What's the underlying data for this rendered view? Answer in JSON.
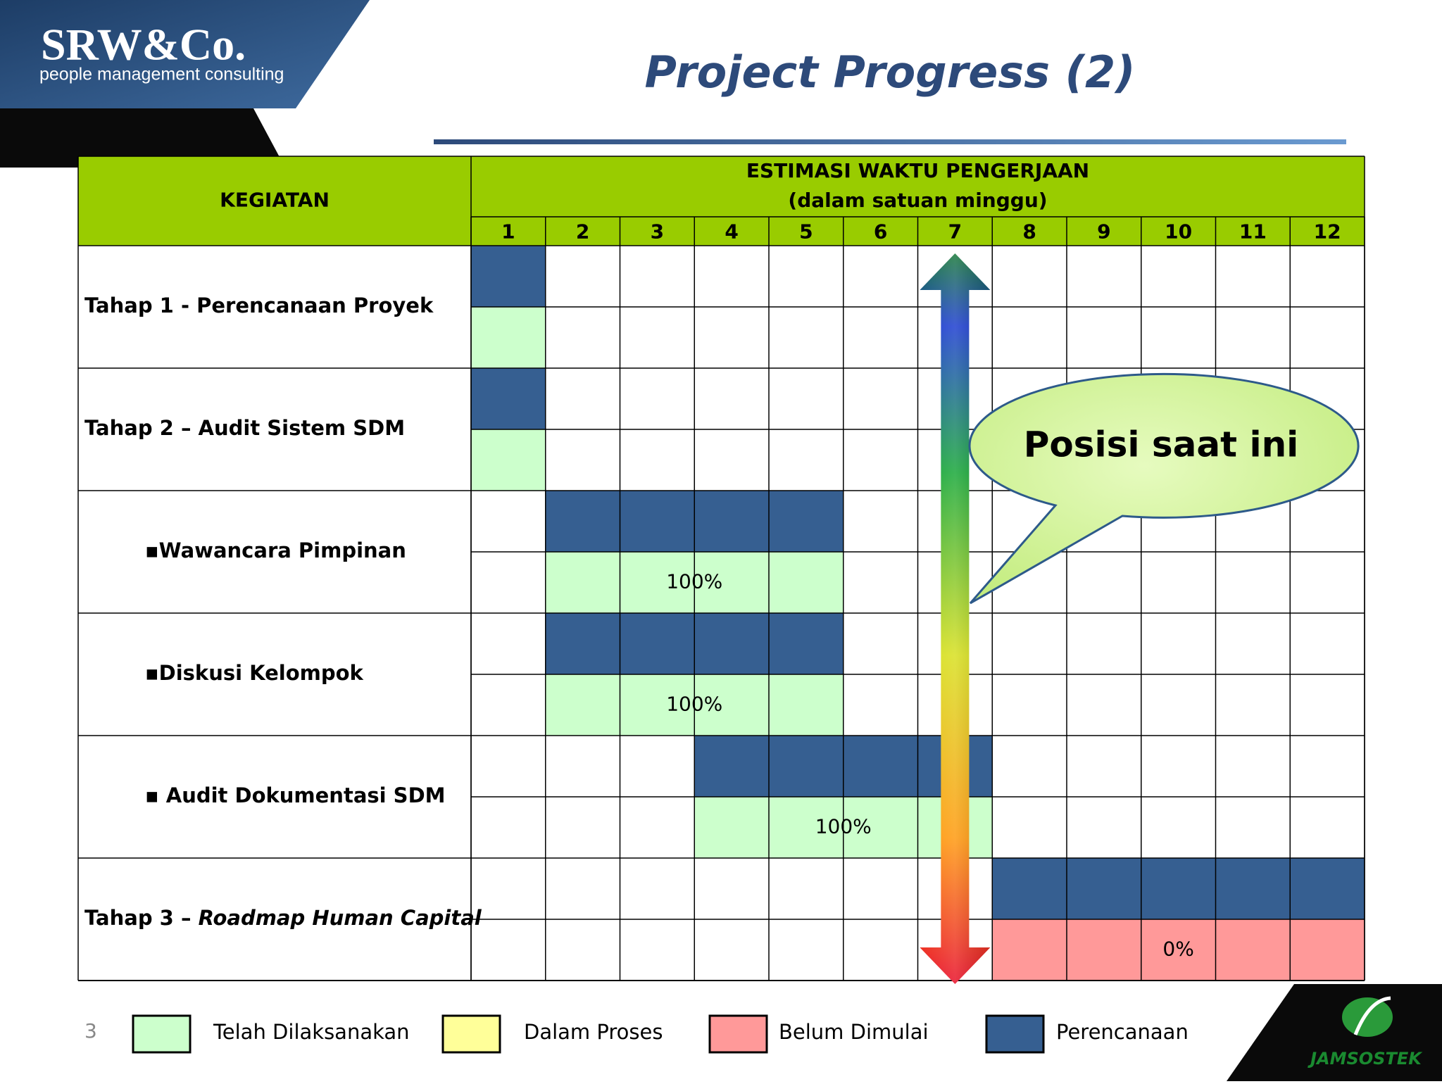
{
  "logo": {
    "title": "SRW&Co.",
    "subtitle": "people management consulting"
  },
  "title": "Project Progress (2)",
  "table": {
    "activity_header": "KEGIATAN",
    "time_header": [
      "ESTIMASI WAKTU PENGERJAAN",
      "(dalam satuan minggu)"
    ],
    "weeks": [
      1,
      2,
      3,
      4,
      5,
      6,
      7,
      8,
      9,
      10,
      11,
      12
    ],
    "header_color": "#99cc00",
    "plan_color": "#365f91",
    "rows": [
      {
        "label": "Tahap 1 - Perencanaan Proyek",
        "plan": [
          1,
          1
        ],
        "actual": [
          1,
          1
        ],
        "actual_color": "#ccffcc"
      },
      {
        "label": "Tahap 2 – Audit Sistem SDM",
        "plan": [
          1,
          1
        ],
        "actual": [
          1,
          1
        ],
        "actual_color": "#ccffcc"
      },
      {
        "label": "▪Wawancara Pimpinan",
        "plan": [
          2,
          5
        ],
        "actual": [
          2,
          5
        ],
        "actual_color": "#ccffcc",
        "actual_label": "100%"
      },
      {
        "label": "▪Diskusi Kelompok",
        "plan": [
          2,
          5
        ],
        "actual": [
          2,
          5
        ],
        "actual_color": "#ccffcc",
        "actual_label": "100%"
      },
      {
        "label": "▪ Audit Dokumentasi SDM",
        "plan": [
          4,
          7
        ],
        "actual": [
          4,
          7
        ],
        "actual_color": "#ccffcc",
        "actual_label": "100%"
      },
      {
        "label": "Tahap 3 – ",
        "label_italic": "Roadmap Human Capital",
        "plan": [
          8,
          12
        ],
        "actual": [
          8,
          12
        ],
        "actual_color": "#ff9999",
        "actual_label": "0%"
      }
    ]
  },
  "callout": {
    "text": "Posisi saat ini",
    "week": 7
  },
  "page_number": "3",
  "legend": [
    {
      "label": "Telah Dilaksanakan",
      "color": "#ccffcc"
    },
    {
      "label": "Dalam Proses",
      "color": "#ffff99"
    },
    {
      "label": "Belum Dimulai",
      "color": "#ff9999"
    },
    {
      "label": "Perencanaan",
      "color": "#365f91"
    }
  ],
  "footer_logo": "JAMSOSTEK"
}
